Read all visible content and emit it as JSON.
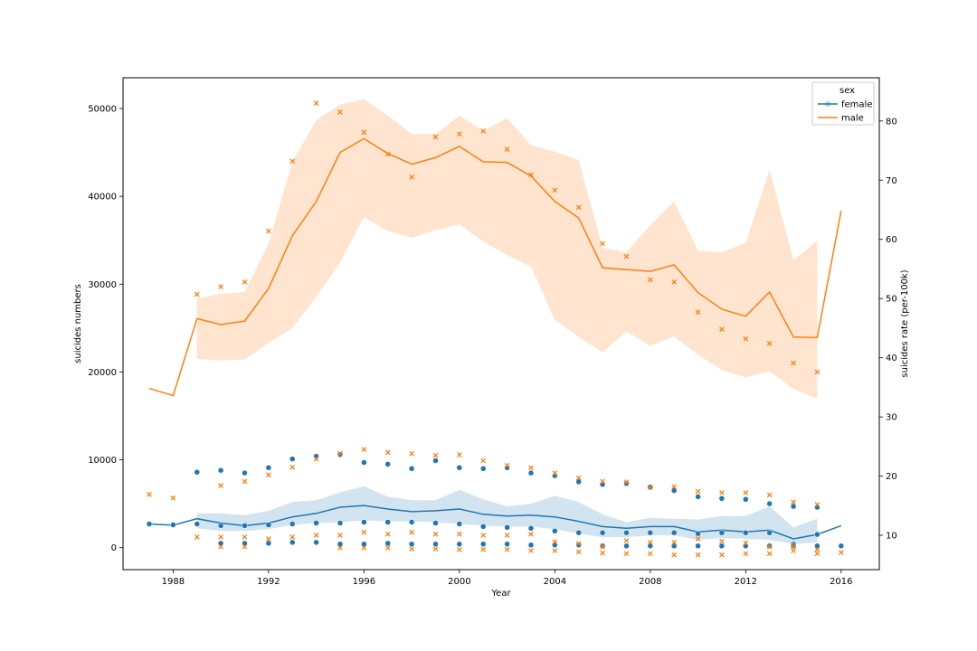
{
  "chart_data": {
    "type": "line",
    "xlabel": "Year",
    "ylabel_left": "suicides numbers",
    "ylabel_right": "suicides rate (per-100k)",
    "x_ticks": [
      1988,
      1992,
      1996,
      2000,
      2004,
      2008,
      2012,
      2016
    ],
    "y_left_ticks": [
      0,
      10000,
      20000,
      30000,
      40000,
      50000
    ],
    "y_right_ticks": [
      10,
      20,
      30,
      40,
      50,
      60,
      70,
      80
    ],
    "xlim": [
      1985.9,
      2017.6
    ],
    "ylim_left": [
      -2500,
      53500
    ],
    "ylim_right": [
      4.2,
      87.3
    ],
    "legend": {
      "title": "sex",
      "placement": "top-right",
      "entries": [
        "female",
        "male"
      ]
    },
    "colors": {
      "female": "#1f77b4",
      "male": "#ff7f0e"
    },
    "series": [
      {
        "name": "female",
        "axis": "left",
        "x": [
          1987,
          1988,
          1989,
          1990,
          1991,
          1992,
          1993,
          1994,
          1995,
          1996,
          1997,
          1998,
          1999,
          2000,
          2001,
          2002,
          2003,
          2004,
          2005,
          2006,
          2007,
          2008,
          2009,
          2010,
          2011,
          2012,
          2013,
          2014,
          2015,
          2016
        ],
        "mean": [
          2700,
          2550,
          3300,
          2800,
          2500,
          2800,
          3500,
          3900,
          4600,
          4800,
          4400,
          4100,
          4200,
          4400,
          3800,
          3600,
          3700,
          3500,
          3000,
          2400,
          2200,
          2400,
          2400,
          1800,
          2000,
          1800,
          2000,
          1000,
          1500,
          2500
        ],
        "ci_low": [
          null,
          null,
          2200,
          1900,
          1900,
          2100,
          2600,
          2800,
          2900,
          3100,
          3000,
          3000,
          2900,
          2700,
          2500,
          2400,
          2400,
          2100,
          1600,
          1200,
          1200,
          1400,
          1400,
          900,
          1100,
          1000,
          900,
          400,
          600,
          null
        ],
        "ci_high": [
          null,
          null,
          3900,
          3900,
          3700,
          4200,
          5200,
          5400,
          6300,
          7000,
          5800,
          5400,
          5400,
          6600,
          5500,
          4700,
          5000,
          5900,
          5200,
          3800,
          2900,
          3400,
          3300,
          3200,
          3600,
          3600,
          4700,
          2300,
          3300,
          null
        ]
      },
      {
        "name": "male",
        "axis": "right",
        "x": [
          1987,
          1988,
          1989,
          1990,
          1991,
          1992,
          1993,
          1994,
          1995,
          1996,
          1997,
          1998,
          1999,
          2000,
          2001,
          2002,
          2003,
          2004,
          2005,
          2006,
          2007,
          2008,
          2009,
          2010,
          2011,
          2012,
          2013,
          2014,
          2015,
          2016
        ],
        "mean": [
          34.8,
          33.6,
          46.6,
          45.6,
          46.2,
          51.7,
          60.6,
          66.4,
          74.7,
          77.0,
          74.5,
          72.7,
          73.8,
          75.7,
          73.1,
          73.0,
          70.7,
          66.4,
          63.6,
          55.2,
          54.9,
          54.6,
          55.7,
          51.0,
          48.2,
          47.0,
          51.1,
          43.5,
          43.4,
          64.8
        ],
        "ci_low": [
          null,
          null,
          39.8,
          39.5,
          39.7,
          42.5,
          45.0,
          50.3,
          56.1,
          63.7,
          61.4,
          60.3,
          61.5,
          62.5,
          59.6,
          57.3,
          55.4,
          46.4,
          43.5,
          40.9,
          44.4,
          42.0,
          43.6,
          40.5,
          37.9,
          36.7,
          37.7,
          34.7,
          33.1,
          null
        ],
        "ci_high": [
          null,
          null,
          50.0,
          50.8,
          51.1,
          59.3,
          73.1,
          80.1,
          82.8,
          83.7,
          80.9,
          77.8,
          77.8,
          80.9,
          78.3,
          80.5,
          75.9,
          74.8,
          73.4,
          58.6,
          57.8,
          62.4,
          66.4,
          58.1,
          57.8,
          59.4,
          71.8,
          56.5,
          59.7,
          null
        ]
      }
    ],
    "scatter_series": [
      {
        "name": "female-markers",
        "group": "female",
        "marker": "o",
        "axis": "left",
        "points": [
          [
            1987,
            2700
          ],
          [
            1988,
            2600
          ],
          [
            1989,
            8600
          ],
          [
            1989,
            2700
          ],
          [
            1990,
            8800
          ],
          [
            1990,
            2500
          ],
          [
            1990,
            500
          ],
          [
            1991,
            8500
          ],
          [
            1991,
            2500
          ],
          [
            1991,
            500
          ],
          [
            1992,
            9100
          ],
          [
            1992,
            2600
          ],
          [
            1992,
            500
          ],
          [
            1993,
            10100
          ],
          [
            1993,
            2700
          ],
          [
            1993,
            600
          ],
          [
            1994,
            10400
          ],
          [
            1994,
            2800
          ],
          [
            1994,
            600
          ],
          [
            1995,
            10600
          ],
          [
            1995,
            2800
          ],
          [
            1995,
            400
          ],
          [
            1996,
            9700
          ],
          [
            1996,
            2900
          ],
          [
            1996,
            400
          ],
          [
            1997,
            9500
          ],
          [
            1997,
            2900
          ],
          [
            1997,
            500
          ],
          [
            1998,
            9000
          ],
          [
            1998,
            2900
          ],
          [
            1998,
            400
          ],
          [
            1999,
            9900
          ],
          [
            1999,
            2800
          ],
          [
            1999,
            400
          ],
          [
            2000,
            9100
          ],
          [
            2000,
            2700
          ],
          [
            2000,
            400
          ],
          [
            2001,
            9000
          ],
          [
            2001,
            2400
          ],
          [
            2001,
            400
          ],
          [
            2002,
            9100
          ],
          [
            2002,
            2300
          ],
          [
            2002,
            400
          ],
          [
            2003,
            8500
          ],
          [
            2003,
            2200
          ],
          [
            2003,
            300
          ],
          [
            2004,
            8200
          ],
          [
            2004,
            1900
          ],
          [
            2004,
            300
          ],
          [
            2005,
            7500
          ],
          [
            2005,
            1700
          ],
          [
            2005,
            300
          ],
          [
            2006,
            7200
          ],
          [
            2006,
            1700
          ],
          [
            2006,
            200
          ],
          [
            2007,
            7300
          ],
          [
            2007,
            1700
          ],
          [
            2007,
            200
          ],
          [
            2008,
            6900
          ],
          [
            2008,
            1700
          ],
          [
            2008,
            200
          ],
          [
            2009,
            6500
          ],
          [
            2009,
            1700
          ],
          [
            2009,
            200
          ],
          [
            2010,
            5800
          ],
          [
            2010,
            1600
          ],
          [
            2010,
            200
          ],
          [
            2011,
            5600
          ],
          [
            2011,
            1700
          ],
          [
            2011,
            200
          ],
          [
            2012,
            5500
          ],
          [
            2012,
            1700
          ],
          [
            2012,
            200
          ],
          [
            2013,
            5000
          ],
          [
            2013,
            1700
          ],
          [
            2013,
            200
          ],
          [
            2014,
            4700
          ],
          [
            2014,
            400
          ],
          [
            2014,
            200
          ],
          [
            2015,
            4600
          ],
          [
            2015,
            1500
          ],
          [
            2015,
            200
          ],
          [
            2016,
            200
          ]
        ]
      },
      {
        "name": "male-markers",
        "group": "male",
        "marker": "x",
        "axis": "right",
        "points": [
          [
            1989,
            50.7
          ],
          [
            1990,
            52.0
          ],
          [
            1991,
            52.8
          ],
          [
            1992,
            61.4
          ],
          [
            1993,
            73.2
          ],
          [
            1994,
            83.0
          ],
          [
            1995,
            81.5
          ],
          [
            1996,
            78.1
          ],
          [
            1997,
            74.4
          ],
          [
            1998,
            70.5
          ],
          [
            1999,
            77.3
          ],
          [
            2000,
            77.8
          ],
          [
            2001,
            78.3
          ],
          [
            2002,
            75.2
          ],
          [
            2003,
            70.9
          ],
          [
            2004,
            68.3
          ],
          [
            2005,
            65.4
          ],
          [
            2006,
            59.3
          ],
          [
            2007,
            57.1
          ],
          [
            2008,
            53.2
          ],
          [
            2009,
            52.8
          ],
          [
            2010,
            47.7
          ],
          [
            2011,
            44.8
          ],
          [
            2012,
            43.2
          ],
          [
            2013,
            42.4
          ],
          [
            2014,
            39.1
          ],
          [
            2015,
            37.6
          ],
          [
            1987,
            16.9
          ],
          [
            1988,
            16.3
          ],
          [
            1990,
            18.4
          ],
          [
            1991,
            19.1
          ],
          [
            1992,
            20.2
          ],
          [
            1993,
            21.5
          ],
          [
            1994,
            22.9
          ],
          [
            1995,
            23.8
          ],
          [
            1996,
            24.5
          ],
          [
            1997,
            24.0
          ],
          [
            1998,
            23.8
          ],
          [
            1999,
            23.5
          ],
          [
            2000,
            23.6
          ],
          [
            2001,
            22.6
          ],
          [
            2002,
            21.8
          ],
          [
            2003,
            21.4
          ],
          [
            2004,
            20.5
          ],
          [
            2005,
            19.7
          ],
          [
            2006,
            19.1
          ],
          [
            2007,
            19.0
          ],
          [
            2008,
            18.1
          ],
          [
            2009,
            18.2
          ],
          [
            2010,
            17.4
          ],
          [
            2011,
            17.2
          ],
          [
            2012,
            17.2
          ],
          [
            2013,
            16.8
          ],
          [
            2014,
            15.6
          ],
          [
            2015,
            15.2
          ],
          [
            1989,
            9.7
          ],
          [
            1990,
            9.7
          ],
          [
            1991,
            9.7
          ],
          [
            1992,
            9.4
          ],
          [
            1993,
            9.7
          ],
          [
            1994,
            10.0
          ],
          [
            1995,
            10.0
          ],
          [
            1996,
            10.5
          ],
          [
            1997,
            10.2
          ],
          [
            1998,
            10.5
          ],
          [
            1999,
            10.2
          ],
          [
            2000,
            10.2
          ],
          [
            2001,
            10.0
          ],
          [
            2002,
            10.0
          ],
          [
            2003,
            10.2
          ],
          [
            2004,
            8.9
          ],
          [
            2005,
            8.6
          ],
          [
            2006,
            8.1
          ],
          [
            2007,
            9.1
          ],
          [
            2008,
            8.8
          ],
          [
            2009,
            8.8
          ],
          [
            2010,
            9.4
          ],
          [
            2011,
            9.0
          ],
          [
            2012,
            8.7
          ],
          [
            2013,
            8.1
          ],
          [
            2014,
            8.1
          ],
          [
            2015,
            7.6
          ],
          [
            2016,
            7.1
          ],
          [
            1990,
            8.1
          ],
          [
            1991,
            8.1
          ],
          [
            1995,
            7.9
          ],
          [
            1996,
            7.9
          ],
          [
            1997,
            7.9
          ],
          [
            1998,
            7.7
          ],
          [
            1999,
            7.7
          ],
          [
            2000,
            7.6
          ],
          [
            2001,
            7.6
          ],
          [
            2002,
            7.6
          ],
          [
            2003,
            7.4
          ],
          [
            2004,
            7.4
          ],
          [
            2005,
            7.2
          ],
          [
            2006,
            7.0
          ],
          [
            2007,
            6.9
          ],
          [
            2008,
            6.9
          ],
          [
            2009,
            6.7
          ],
          [
            2010,
            6.7
          ],
          [
            2011,
            6.7
          ],
          [
            2012,
            6.9
          ],
          [
            2013,
            6.9
          ],
          [
            2014,
            7.4
          ],
          [
            2015,
            6.9
          ]
        ]
      }
    ]
  }
}
